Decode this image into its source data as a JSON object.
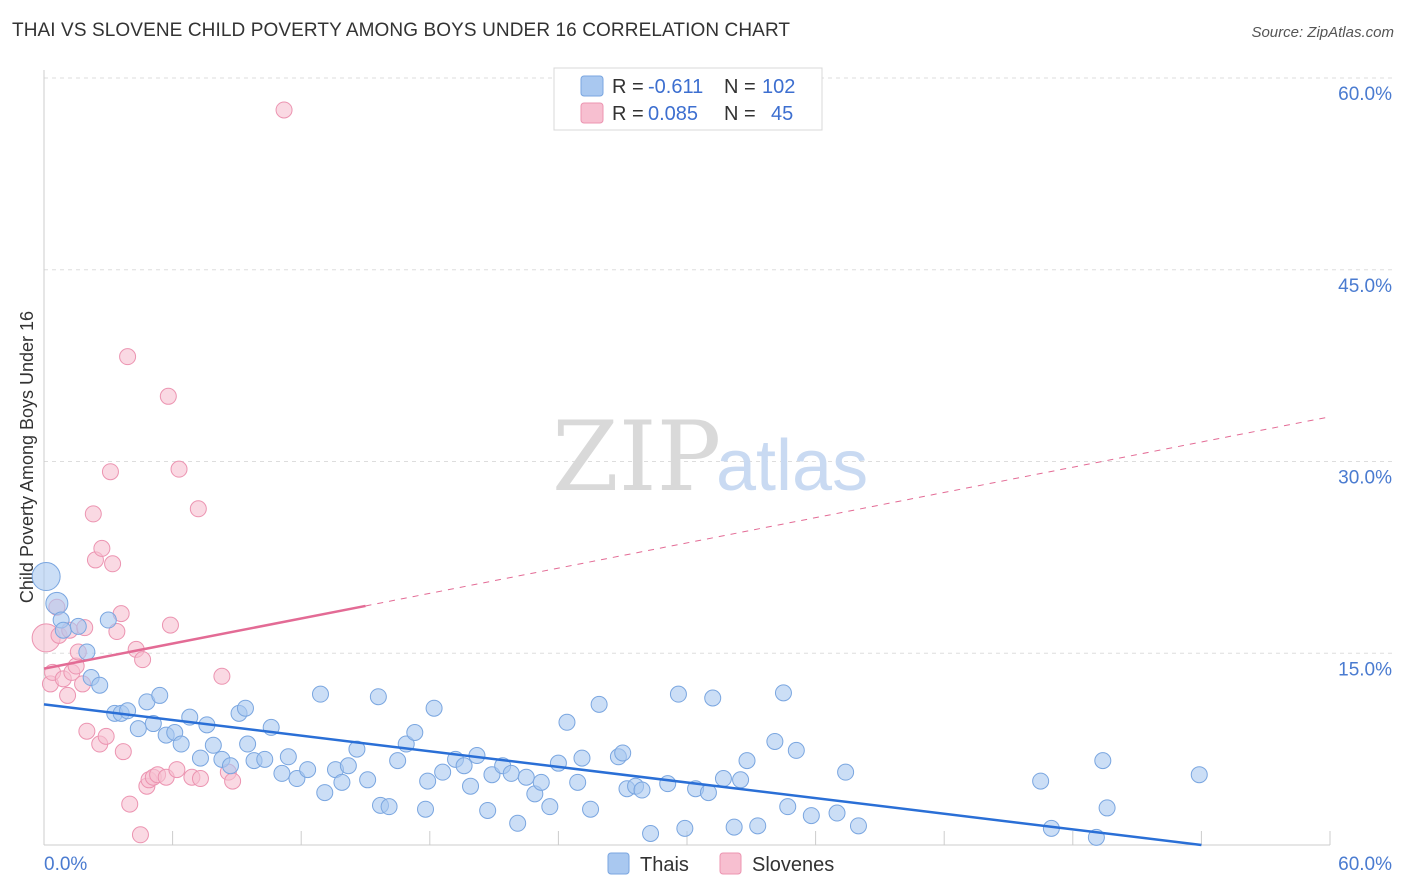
{
  "title": "THAI VS SLOVENE CHILD POVERTY AMONG BOYS UNDER 16 CORRELATION CHART",
  "source": "Source: ZipAtlas.com",
  "watermark": {
    "zip": "ZIP",
    "atlas": "atlas"
  },
  "colors": {
    "thai_fill": "#a9c8f0",
    "thai_stroke": "#7aa6e0",
    "thai_line": "#2a6fd6",
    "slovene_fill": "#f7bfd0",
    "slovene_stroke": "#ec94b1",
    "slovene_line": "#e36b95",
    "grid": "#dddddd",
    "axis_text": "#4a7bd0"
  },
  "legend": {
    "rows": [
      {
        "r_label": "R =",
        "r_value": "-0.611",
        "n_label": "N =",
        "n_value": "102"
      },
      {
        "r_label": "R =",
        "r_value": "0.085",
        "n_label": "N =",
        "n_value": "45"
      }
    ]
  },
  "bottom_legend": {
    "thai": "Thais",
    "slovene": "Slovenes"
  },
  "chart_data": {
    "type": "scatter",
    "title": "THAI VS SLOVENE CHILD POVERTY AMONG BOYS UNDER 16 CORRELATION CHART",
    "xlabel": "",
    "ylabel": "Child Poverty Among Boys Under 16",
    "xlim": [
      0,
      60
    ],
    "ylim": [
      0,
      60
    ],
    "x_tick_labels": [
      "0.0%",
      "60.0%"
    ],
    "y_ticks": [
      15,
      30,
      45,
      60
    ],
    "y_tick_labels": [
      "15.0%",
      "30.0%",
      "45.0%",
      "60.0%"
    ],
    "series": [
      {
        "name": "Thais",
        "r": -0.611,
        "n": 102,
        "trend": {
          "x0": 0,
          "y0": 11.0,
          "x1": 54,
          "y1": 0.0
        },
        "points": [
          [
            0.1,
            21.0
          ],
          [
            0.6,
            18.9
          ],
          [
            0.8,
            17.6
          ],
          [
            0.9,
            16.8
          ],
          [
            1.6,
            17.1
          ],
          [
            2.0,
            15.1
          ],
          [
            2.2,
            13.1
          ],
          [
            2.6,
            12.5
          ],
          [
            3.0,
            17.6
          ],
          [
            3.3,
            10.3
          ],
          [
            3.6,
            10.3
          ],
          [
            3.9,
            10.5
          ],
          [
            4.4,
            9.1
          ],
          [
            4.8,
            11.2
          ],
          [
            5.1,
            9.5
          ],
          [
            5.4,
            11.7
          ],
          [
            5.7,
            8.6
          ],
          [
            6.1,
            8.8
          ],
          [
            6.4,
            7.9
          ],
          [
            6.8,
            10.0
          ],
          [
            7.3,
            6.8
          ],
          [
            7.6,
            9.4
          ],
          [
            7.9,
            7.8
          ],
          [
            8.3,
            6.7
          ],
          [
            8.7,
            6.2
          ],
          [
            9.1,
            10.3
          ],
          [
            9.4,
            10.7
          ],
          [
            9.5,
            7.9
          ],
          [
            9.8,
            6.6
          ],
          [
            10.3,
            6.7
          ],
          [
            10.6,
            9.2
          ],
          [
            11.1,
            5.6
          ],
          [
            11.4,
            6.9
          ],
          [
            11.8,
            5.2
          ],
          [
            12.3,
            5.9
          ],
          [
            12.9,
            11.8
          ],
          [
            13.1,
            4.1
          ],
          [
            13.6,
            5.9
          ],
          [
            13.9,
            4.9
          ],
          [
            14.2,
            6.2
          ],
          [
            14.6,
            7.5
          ],
          [
            15.1,
            5.1
          ],
          [
            15.6,
            11.6
          ],
          [
            15.7,
            3.1
          ],
          [
            16.1,
            3.0
          ],
          [
            16.5,
            6.6
          ],
          [
            16.9,
            7.9
          ],
          [
            17.3,
            8.8
          ],
          [
            17.8,
            2.8
          ],
          [
            17.9,
            5.0
          ],
          [
            18.2,
            10.7
          ],
          [
            18.6,
            5.7
          ],
          [
            19.2,
            6.7
          ],
          [
            19.6,
            6.2
          ],
          [
            19.9,
            4.6
          ],
          [
            20.2,
            7.0
          ],
          [
            20.7,
            2.7
          ],
          [
            20.9,
            5.5
          ],
          [
            21.4,
            6.2
          ],
          [
            21.8,
            5.6
          ],
          [
            22.1,
            1.7
          ],
          [
            22.5,
            5.3
          ],
          [
            22.9,
            4.0
          ],
          [
            23.2,
            4.9
          ],
          [
            23.6,
            3.0
          ],
          [
            24.0,
            6.4
          ],
          [
            24.4,
            9.6
          ],
          [
            24.9,
            4.9
          ],
          [
            25.1,
            6.8
          ],
          [
            25.5,
            2.8
          ],
          [
            25.9,
            11.0
          ],
          [
            26.8,
            6.9
          ],
          [
            27.0,
            7.2
          ],
          [
            27.2,
            4.4
          ],
          [
            27.6,
            4.6
          ],
          [
            27.9,
            4.3
          ],
          [
            28.3,
            0.9
          ],
          [
            29.1,
            4.8
          ],
          [
            29.6,
            11.8
          ],
          [
            29.9,
            1.3
          ],
          [
            30.4,
            4.4
          ],
          [
            31.0,
            4.1
          ],
          [
            31.2,
            11.5
          ],
          [
            31.7,
            5.2
          ],
          [
            32.2,
            1.4
          ],
          [
            32.5,
            5.1
          ],
          [
            32.8,
            6.6
          ],
          [
            33.3,
            1.5
          ],
          [
            34.1,
            8.1
          ],
          [
            34.5,
            11.9
          ],
          [
            34.7,
            3.0
          ],
          [
            35.1,
            7.4
          ],
          [
            35.8,
            2.3
          ],
          [
            37.0,
            2.5
          ],
          [
            37.4,
            5.7
          ],
          [
            38.0,
            1.5
          ],
          [
            46.5,
            5.0
          ],
          [
            49.4,
            6.6
          ],
          [
            49.6,
            2.9
          ],
          [
            49.1,
            0.6
          ],
          [
            47.0,
            1.3
          ],
          [
            53.9,
            5.5
          ]
        ]
      },
      {
        "name": "Slovenes",
        "r": 0.085,
        "n": 45,
        "trend_solid": {
          "x0": 0,
          "y0": 13.8,
          "x1": 15,
          "y1": 18.7
        },
        "trend_dashed": {
          "x0": 15,
          "y0": 18.7,
          "x1": 60,
          "y1": 33.5
        },
        "points": [
          [
            0.1,
            16.2
          ],
          [
            0.3,
            12.6
          ],
          [
            0.4,
            13.5
          ],
          [
            0.6,
            18.6
          ],
          [
            0.7,
            16.4
          ],
          [
            0.9,
            13.0
          ],
          [
            1.1,
            11.7
          ],
          [
            1.2,
            16.8
          ],
          [
            1.3,
            13.5
          ],
          [
            1.5,
            14.0
          ],
          [
            1.6,
            15.1
          ],
          [
            1.8,
            12.6
          ],
          [
            1.9,
            17.0
          ],
          [
            2.0,
            8.9
          ],
          [
            2.3,
            25.9
          ],
          [
            2.4,
            22.3
          ],
          [
            2.6,
            7.9
          ],
          [
            2.7,
            23.2
          ],
          [
            2.9,
            8.5
          ],
          [
            3.1,
            29.2
          ],
          [
            3.2,
            22.0
          ],
          [
            3.4,
            16.7
          ],
          [
            3.6,
            18.1
          ],
          [
            3.7,
            7.3
          ],
          [
            3.9,
            38.2
          ],
          [
            4.0,
            3.2
          ],
          [
            4.3,
            15.3
          ],
          [
            4.5,
            0.8
          ],
          [
            4.6,
            14.5
          ],
          [
            4.8,
            4.6
          ],
          [
            4.9,
            5.1
          ],
          [
            5.1,
            5.3
          ],
          [
            5.3,
            5.5
          ],
          [
            5.7,
            5.3
          ],
          [
            5.8,
            35.1
          ],
          [
            5.9,
            17.2
          ],
          [
            6.2,
            5.9
          ],
          [
            6.3,
            29.4
          ],
          [
            6.9,
            5.3
          ],
          [
            7.2,
            26.3
          ],
          [
            7.3,
            5.2
          ],
          [
            8.3,
            13.2
          ],
          [
            8.6,
            5.7
          ],
          [
            8.8,
            5.0
          ],
          [
            11.2,
            57.5
          ]
        ]
      }
    ]
  }
}
